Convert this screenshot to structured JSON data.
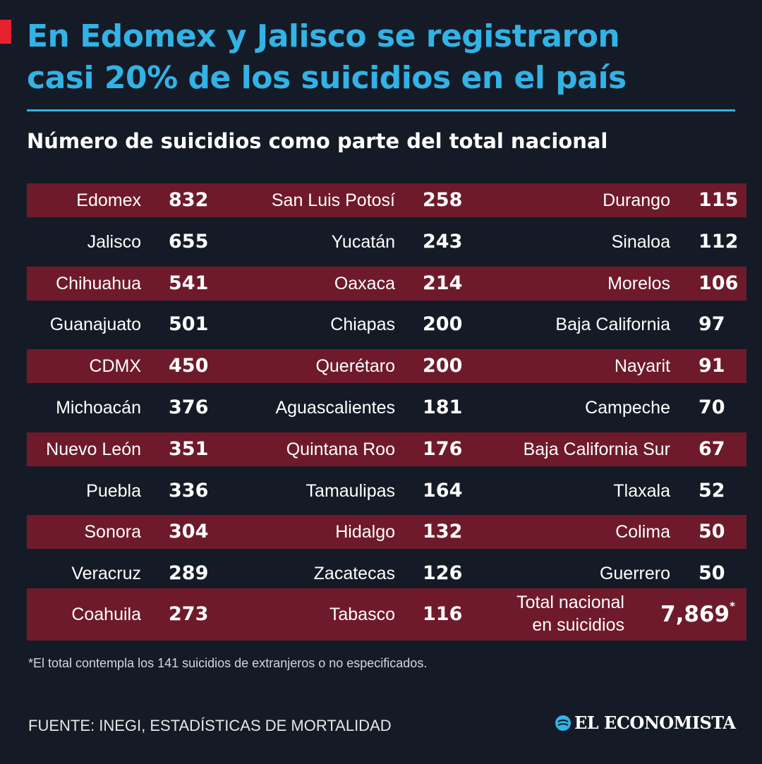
{
  "header": {
    "title_line1": "En Edomex y Jalisco se registraron",
    "title_line2": "casi 20% de los suicidios en el país",
    "subtitle": "Número de suicidios como parte del total nacional"
  },
  "colors": {
    "title": "#33b2e6",
    "accent": "#e8202e",
    "band": "#6e1a2a",
    "background": "#151b26"
  },
  "chart_data": {
    "type": "table",
    "title": "En Edomex y Jalisco se registraron casi 20% de los suicidios en el país",
    "subtitle": "Número de suicidios como parte del total nacional",
    "rows": [
      [
        [
          "Edomex",
          "832"
        ],
        [
          "San Luis Potosí",
          "258"
        ],
        [
          "Durango",
          "115"
        ]
      ],
      [
        [
          "Jalisco",
          "655"
        ],
        [
          "Yucatán",
          "243"
        ],
        [
          "Sinaloa",
          "112"
        ]
      ],
      [
        [
          "Chihuahua",
          "541"
        ],
        [
          "Oaxaca",
          "214"
        ],
        [
          "Morelos",
          "106"
        ]
      ],
      [
        [
          "Guanajuato",
          "501"
        ],
        [
          "Chiapas",
          "200"
        ],
        [
          "Baja California",
          "97"
        ]
      ],
      [
        [
          "CDMX",
          "450"
        ],
        [
          "Querétaro",
          "200"
        ],
        [
          "Nayarit",
          "91"
        ]
      ],
      [
        [
          "Michoacán",
          "376"
        ],
        [
          "Aguascalientes",
          "181"
        ],
        [
          "Campeche",
          "70"
        ]
      ],
      [
        [
          "Nuevo León",
          "351"
        ],
        [
          "Quintana Roo",
          "176"
        ],
        [
          "Baja California Sur",
          "67"
        ]
      ],
      [
        [
          "Puebla",
          "336"
        ],
        [
          "Tamaulipas",
          "164"
        ],
        [
          "Tlaxala",
          "52"
        ]
      ],
      [
        [
          "Sonora",
          "304"
        ],
        [
          "Hidalgo",
          "132"
        ],
        [
          "Colima",
          "50"
        ]
      ],
      [
        [
          "Veracruz",
          "289"
        ],
        [
          "Zacatecas",
          "126"
        ],
        [
          "Guerrero",
          "50"
        ]
      ]
    ],
    "last_row": {
      "c1": [
        "Coahuila",
        "273"
      ],
      "c2": [
        "Tabasco",
        "116"
      ]
    },
    "total": {
      "label_line1": "Total nacional",
      "label_line2": "en suicidios",
      "value": "7,869",
      "mark": "*"
    }
  },
  "footer": {
    "footnote": "*El total contempla los 141 suicidios de extranjeros o no especificados.",
    "source": "FUENTE: INEGI, ESTADÍSTICAS DE MORTALIDAD",
    "brand": "EL ECONOMISTA",
    "brand_icon": "el-economista-logo-icon"
  }
}
